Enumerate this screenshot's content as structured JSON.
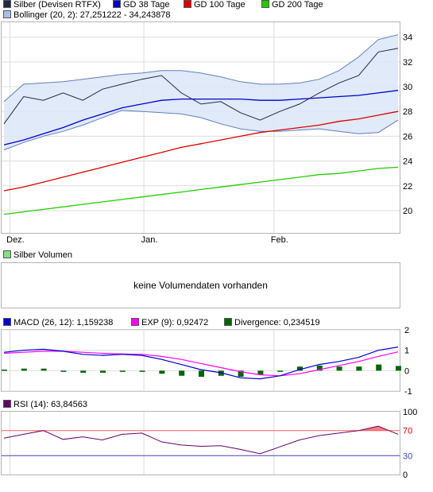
{
  "colors": {
    "price": "#1e2a44",
    "gd38": "#0000cc",
    "gd100": "#dd0000",
    "gd200": "#22cc00",
    "bollinger_fill": "#dbe6f7",
    "bollinger_line": "#5f7fbf",
    "macd": "#0000cc",
    "exp": "#ff00ff",
    "divergence": "#006600",
    "rsi": "#660066",
    "rsi_upper": "#ff5a5a",
    "rsi_lower": "#4444aa",
    "grid": "#dddddd"
  },
  "price_panel": {
    "legend": {
      "price": "Silber (Devisen RTFX)",
      "gd38": "GD 38 Tage",
      "gd100": "GD 100 Tage",
      "gd200": "GD 200 Tage",
      "bollinger": "Bollinger (20, 2): 27,251222 - 34,243878"
    },
    "x_labels": [
      "Dez.",
      "Jan.",
      "Feb."
    ]
  },
  "volume_panel": {
    "legend": "Silber Volumen",
    "message": "keine Volumendaten vorhanden"
  },
  "macd_panel": {
    "legend": {
      "macd": "MACD (26, 12): 1,159238",
      "exp": "EXP (9): 0,92472",
      "divergence": "Divergence: 0,234519"
    }
  },
  "rsi_panel": {
    "legend": "RSI (14): 63,84563",
    "levels_text": [
      "70",
      "30"
    ]
  },
  "chart_data": [
    {
      "type": "line",
      "x": [
        0,
        5,
        10,
        15,
        20,
        25,
        30,
        35,
        40,
        45,
        50,
        55,
        60,
        65,
        70,
        75,
        80,
        85,
        90,
        95,
        100
      ],
      "x_tick_labels": [
        "Dez.",
        "Jan.",
        "Feb."
      ],
      "x_tick_positions": [
        1.5,
        35.5,
        68.5
      ],
      "yticks": [
        20,
        22,
        24,
        26,
        28,
        30,
        32,
        34
      ],
      "ylim": [
        18.2,
        35.2
      ],
      "grid": true,
      "series": [
        {
          "name": "Silber (Devisen RTFX)",
          "values": [
            27.0,
            29.2,
            28.9,
            29.5,
            28.9,
            29.8,
            30.2,
            30.6,
            30.9,
            29.5,
            28.6,
            28.8,
            27.9,
            27.3,
            28.0,
            28.6,
            29.5,
            30.3,
            30.9,
            32.8,
            33.1
          ]
        },
        {
          "name": "GD 38 Tage",
          "values": [
            25.3,
            25.7,
            26.2,
            26.7,
            27.3,
            27.8,
            28.3,
            28.6,
            28.9,
            29.0,
            29.0,
            29.0,
            29.0,
            28.9,
            28.9,
            29.0,
            29.1,
            29.2,
            29.3,
            29.5,
            29.7
          ]
        },
        {
          "name": "GD 100 Tage",
          "values": [
            21.6,
            21.9,
            22.3,
            22.7,
            23.1,
            23.5,
            23.9,
            24.3,
            24.7,
            25.1,
            25.4,
            25.7,
            26.0,
            26.3,
            26.5,
            26.7,
            26.9,
            27.2,
            27.4,
            27.7,
            28.0
          ]
        },
        {
          "name": "GD 200 Tage",
          "values": [
            19.7,
            19.9,
            20.1,
            20.3,
            20.5,
            20.7,
            20.9,
            21.1,
            21.3,
            21.5,
            21.7,
            21.9,
            22.1,
            22.3,
            22.5,
            22.7,
            22.9,
            23.0,
            23.2,
            23.4,
            23.5
          ]
        }
      ],
      "bollinger": {
        "upper": [
          28.8,
          30.2,
          30.3,
          30.4,
          30.6,
          30.8,
          31.0,
          31.1,
          31.3,
          31.3,
          31.1,
          30.8,
          30.4,
          30.2,
          30.2,
          30.3,
          30.6,
          31.3,
          32.4,
          33.8,
          34.2
        ],
        "lower": [
          24.9,
          25.5,
          26.0,
          26.4,
          26.9,
          27.5,
          28.1,
          28.0,
          27.9,
          27.8,
          27.5,
          27.0,
          26.6,
          26.4,
          26.4,
          26.5,
          26.6,
          26.4,
          26.2,
          26.3,
          27.3
        ]
      }
    },
    {
      "type": "line",
      "x": [
        0,
        5,
        10,
        15,
        20,
        25,
        30,
        35,
        40,
        45,
        50,
        55,
        60,
        65,
        70,
        75,
        80,
        85,
        90,
        95,
        100
      ],
      "yticks": [
        -1,
        0,
        1,
        2
      ],
      "ylim": [
        -1.0,
        2.0
      ],
      "series": [
        {
          "name": "MACD (26, 12)",
          "values": [
            0.9,
            1.0,
            1.05,
            0.95,
            0.8,
            0.75,
            0.8,
            0.75,
            0.55,
            0.3,
            0.05,
            -0.1,
            -0.35,
            -0.4,
            -0.25,
            0.05,
            0.3,
            0.45,
            0.65,
            1.0,
            1.16
          ]
        },
        {
          "name": "EXP (9)",
          "values": [
            0.85,
            0.9,
            0.95,
            0.95,
            0.9,
            0.85,
            0.82,
            0.8,
            0.7,
            0.55,
            0.35,
            0.15,
            -0.05,
            -0.2,
            -0.25,
            -0.15,
            0.05,
            0.25,
            0.45,
            0.7,
            0.92
          ]
        },
        {
          "name": "Divergence",
          "bars": true,
          "values": [
            0.05,
            0.1,
            0.1,
            0.0,
            -0.1,
            -0.1,
            -0.02,
            -0.05,
            -0.15,
            -0.25,
            -0.3,
            -0.25,
            -0.3,
            -0.2,
            0.0,
            0.2,
            0.25,
            0.2,
            0.2,
            0.3,
            0.23
          ]
        }
      ]
    },
    {
      "type": "line",
      "x": [
        0,
        5,
        10,
        15,
        20,
        25,
        30,
        35,
        40,
        45,
        50,
        55,
        60,
        65,
        70,
        75,
        80,
        85,
        90,
        95,
        100
      ],
      "yticks": [
        0,
        30,
        70,
        100
      ],
      "ylim": [
        0,
        100
      ],
      "levels": [
        70,
        30
      ],
      "series": [
        {
          "name": "RSI (14)",
          "values": [
            58,
            64,
            70,
            56,
            60,
            55,
            64,
            66,
            52,
            47,
            45,
            46,
            40,
            33,
            44,
            55,
            62,
            66,
            70,
            77,
            64
          ]
        }
      ]
    }
  ]
}
